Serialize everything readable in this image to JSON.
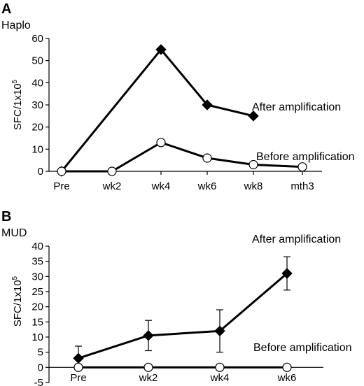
{
  "chart_data": [
    {
      "type": "line",
      "panel": "A",
      "subtitle": "Haplo",
      "ylabel": "SFC/1x10",
      "ylabel_sup": "5",
      "ylim": [
        0,
        60
      ],
      "yticks": [
        0,
        10,
        20,
        30,
        40,
        50,
        60
      ],
      "categories": [
        "Pre",
        "wk2",
        "wk4",
        "wk6",
        "wk8",
        "mth3"
      ],
      "series": [
        {
          "name": "After amplification",
          "marker": "filled-diamond",
          "x": [
            "Pre",
            "wk4",
            "wk6",
            "wk8"
          ],
          "values": [
            0,
            55,
            30,
            25
          ]
        },
        {
          "name": "Before amplification",
          "marker": "open-circle",
          "x": [
            "Pre",
            "wk2",
            "wk4",
            "wk6",
            "wk8",
            "mth3"
          ],
          "values": [
            0,
            0,
            13,
            6,
            3,
            2
          ]
        }
      ]
    },
    {
      "type": "line",
      "panel": "B",
      "subtitle": "MUD",
      "ylabel": "SFC/1x10",
      "ylabel_sup": "5",
      "ylim": [
        -5,
        40
      ],
      "yticks": [
        -5,
        0,
        5,
        10,
        15,
        20,
        25,
        30,
        35,
        40
      ],
      "categories": [
        "Pre",
        "wk2",
        "wk4",
        "wk6"
      ],
      "series": [
        {
          "name": "After amplification",
          "marker": "filled-diamond",
          "x": [
            "Pre",
            "wk2",
            "wk4",
            "wk6"
          ],
          "values": [
            3,
            10.5,
            12,
            31
          ],
          "error_low": [
            -0.5,
            5.5,
            5,
            25.5
          ],
          "error_high": [
            7,
            15.5,
            19,
            36.5
          ]
        },
        {
          "name": "Before amplification",
          "marker": "open-circle",
          "x": [
            "Pre",
            "wk2",
            "wk4",
            "wk6"
          ],
          "values": [
            0,
            0,
            0,
            0
          ]
        }
      ]
    }
  ]
}
